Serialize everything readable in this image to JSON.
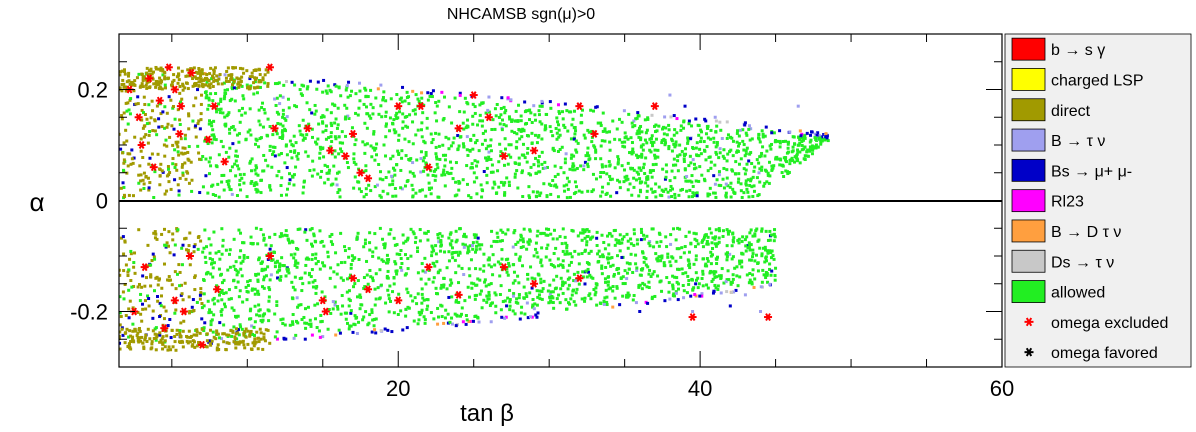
{
  "chart_data": {
    "type": "scatter",
    "title": "NHCAMSB    sgn(μ)>0",
    "xlabel": "tan β",
    "ylabel": "α",
    "xlim": [
      1.5,
      60
    ],
    "ylim": [
      -0.3,
      0.3
    ],
    "x_ticks": [
      20,
      40,
      60
    ],
    "y_ticks": [
      -0.2,
      0,
      0.2
    ],
    "x_tick_labels": [
      "20",
      "40",
      "60"
    ],
    "y_tick_labels": [
      "-0.2",
      "0",
      "0.2"
    ],
    "grid": false,
    "reference_line_y": 0,
    "regions": [
      {
        "name": "upper",
        "alpha_min": 0.005,
        "alpha_max_at_low_tanb": 0.23,
        "tanb_max": 48.5,
        "tip_alpha": 0.12
      },
      {
        "name": "lower",
        "alpha_max": -0.05,
        "alpha_min_at_low_tanb": -0.26,
        "tanb_max": 45,
        "tip_alpha": -0.155
      }
    ],
    "series": [
      {
        "name": "b → s γ",
        "color": "#ff0000"
      },
      {
        "name": "charged LSP",
        "color": "#ffff00"
      },
      {
        "name": "direct",
        "color": "#a19a00"
      },
      {
        "name": "B → τ ν",
        "color": "#9f9fef"
      },
      {
        "name": "Bs → μ+ μ-",
        "color": "#0000c8"
      },
      {
        "name": "Rl23",
        "color": "#ff00ff"
      },
      {
        "name": "B → D τ ν",
        "color": "#ff9f3f"
      },
      {
        "name": "Ds → τ ν",
        "color": "#c8c8c8"
      },
      {
        "name": "allowed",
        "color": "#22ee22"
      },
      {
        "name": "omega excluded",
        "color": "#ff0000",
        "marker": "star"
      },
      {
        "name": "omega favored",
        "color": "#000000",
        "marker": "star"
      }
    ],
    "omega_excluded_points": [
      [
        2.2,
        0.2
      ],
      [
        2.8,
        0.15
      ],
      [
        3.5,
        0.22
      ],
      [
        4.2,
        0.18
      ],
      [
        4.8,
        0.24
      ],
      [
        5.2,
        0.2
      ],
      [
        5.6,
        0.17
      ],
      [
        6.3,
        0.23
      ],
      [
        7.4,
        0.11
      ],
      [
        7.8,
        0.17
      ],
      [
        8.5,
        0.07
      ],
      [
        11.5,
        0.24
      ],
      [
        11.8,
        0.13
      ],
      [
        14,
        0.13
      ],
      [
        15.5,
        0.09
      ],
      [
        16.5,
        0.08
      ],
      [
        17,
        0.12
      ],
      [
        17.5,
        0.05
      ],
      [
        18,
        0.04
      ],
      [
        20,
        0.17
      ],
      [
        21.5,
        0.17
      ],
      [
        22,
        0.06
      ],
      [
        24,
        0.13
      ],
      [
        25,
        0.19
      ],
      [
        26,
        0.15
      ],
      [
        27,
        0.08
      ],
      [
        29,
        0.09
      ],
      [
        32,
        0.17
      ],
      [
        33,
        0.12
      ],
      [
        37,
        0.17
      ],
      [
        3,
        0.1
      ],
      [
        3.8,
        0.06
      ],
      [
        5.5,
        0.12
      ],
      [
        2.5,
        -0.2
      ],
      [
        3.2,
        -0.12
      ],
      [
        4.5,
        -0.23
      ],
      [
        5.2,
        -0.18
      ],
      [
        5.8,
        -0.2
      ],
      [
        6.2,
        -0.1
      ],
      [
        7,
        -0.26
      ],
      [
        8,
        -0.16
      ],
      [
        11.5,
        -0.1
      ],
      [
        15,
        -0.18
      ],
      [
        15.2,
        -0.2
      ],
      [
        17,
        -0.14
      ],
      [
        18,
        -0.16
      ],
      [
        20,
        -0.18
      ],
      [
        22,
        -0.12
      ],
      [
        24,
        -0.17
      ],
      [
        27,
        -0.12
      ],
      [
        29,
        -0.15
      ],
      [
        32,
        -0.14
      ],
      [
        39.5,
        -0.21
      ],
      [
        44.5,
        -0.21
      ]
    ]
  }
}
